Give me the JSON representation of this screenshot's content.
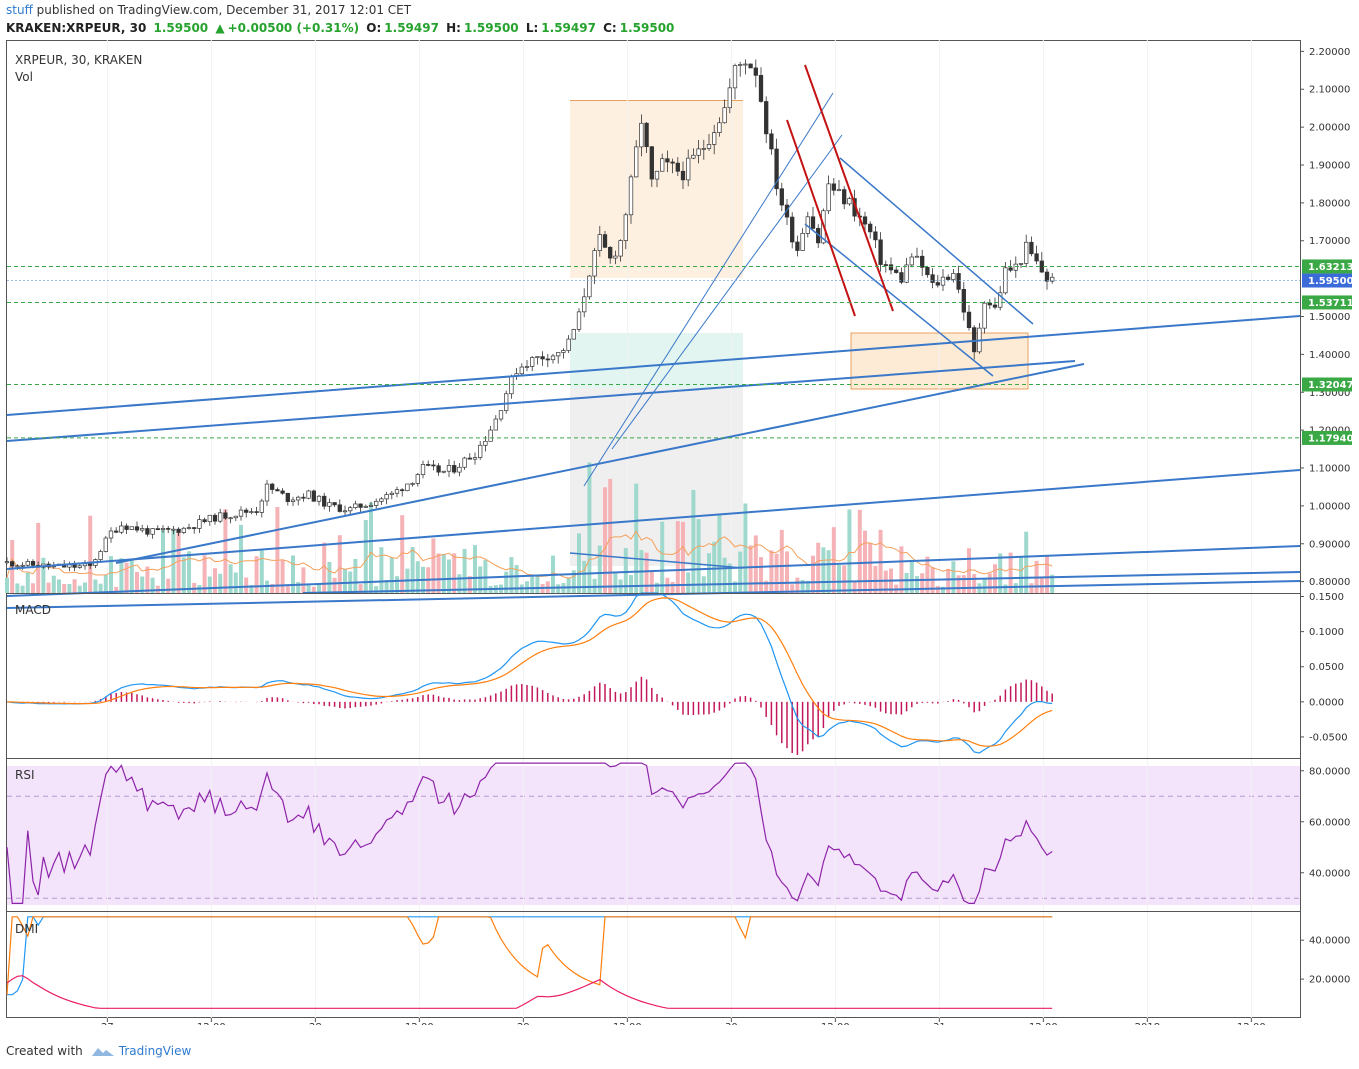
{
  "header": {
    "user": "stuff",
    "published": "published on TradingView.com, December 31, 2017 12:01 CET",
    "symbol": "KRAKEN:XRPEUR, 30",
    "price": "1.59500",
    "change": "+0.00500 (+0.31%)",
    "o_label": "O:",
    "o_value": "1.59497",
    "h_label": "H:",
    "h_value": "1.59500",
    "l_label": "L:",
    "l_value": "1.59497",
    "c_label": "C:",
    "c_value": "1.59500"
  },
  "panes": {
    "main_title": "XRPEUR, 30, KRAKEN",
    "vol_title": "Vol",
    "macd_title": "MACD",
    "rsi_title": "RSI",
    "dmi_title": "DMI"
  },
  "footer": {
    "created_with": "Created with",
    "brand": "TradingView"
  },
  "colors": {
    "up": "#26a69a",
    "down": "#ef5350",
    "trend": "#3a78c9",
    "red_line": "#c41212",
    "level": "#26a32e",
    "macd": "#2196f3",
    "signal": "#ff7f0e",
    "hist": "#c2185b",
    "rsi": "#8e24aa",
    "rsi_band": "#f3e3fb",
    "dmi_plus": "#2196f3",
    "dmi_minus": "#ff7f0e",
    "adx": "#e91e63"
  },
  "chart_data": [
    {
      "type": "candlestick",
      "title": "XRPEUR, 30, KRAKEN",
      "ylim": [
        0.77,
        2.23
      ],
      "y_ticks": [
        "2.20000",
        "2.10000",
        "2.00000",
        "1.90000",
        "1.80000",
        "1.70000",
        "1.50000",
        "1.40000",
        "1.30000",
        "1.20000",
        "1.10000",
        "1.00000",
        "0.90000",
        "0.80000"
      ],
      "x_ticks": [
        "27",
        "12:00",
        "28",
        "12:00",
        "29",
        "12:00",
        "30",
        "12:00",
        "31",
        "12:00",
        "2018",
        "12:00"
      ],
      "path": [
        [
          0,
          0.85
        ],
        [
          8,
          0.84
        ],
        [
          16,
          0.84
        ],
        [
          20,
          0.93
        ],
        [
          22,
          0.95
        ],
        [
          28,
          0.93
        ],
        [
          34,
          0.94
        ],
        [
          40,
          0.97
        ],
        [
          48,
          0.99
        ],
        [
          50,
          1.05
        ],
        [
          54,
          1.02
        ],
        [
          58,
          1.03
        ],
        [
          62,
          1.0
        ],
        [
          66,
          0.99
        ],
        [
          70,
          1.01
        ],
        [
          74,
          1.03
        ],
        [
          78,
          1.07
        ],
        [
          80,
          1.1
        ],
        [
          84,
          1.09
        ],
        [
          86,
          1.1
        ],
        [
          90,
          1.14
        ],
        [
          92,
          1.18
        ],
        [
          94,
          1.23
        ],
        [
          96,
          1.3
        ],
        [
          98,
          1.36
        ],
        [
          100,
          1.38
        ],
        [
          104,
          1.4
        ],
        [
          106,
          1.4
        ],
        [
          108,
          1.43
        ],
        [
          110,
          1.5
        ],
        [
          112,
          1.62
        ],
        [
          114,
          1.7
        ],
        [
          116,
          1.65
        ],
        [
          118,
          1.7
        ],
        [
          120,
          1.85
        ],
        [
          122,
          2.02
        ],
        [
          124,
          1.85
        ],
        [
          126,
          1.9
        ],
        [
          130,
          1.88
        ],
        [
          134,
          1.95
        ],
        [
          138,
          2.05
        ],
        [
          140,
          2.15
        ],
        [
          142,
          2.18
        ],
        [
          144,
          2.15
        ],
        [
          146,
          2.0
        ],
        [
          148,
          1.85
        ],
        [
          150,
          1.75
        ],
        [
          152,
          1.68
        ],
        [
          154,
          1.78
        ],
        [
          156,
          1.7
        ],
        [
          158,
          1.85
        ],
        [
          160,
          1.82
        ],
        [
          162,
          1.8
        ],
        [
          164,
          1.76
        ],
        [
          166,
          1.72
        ],
        [
          168,
          1.65
        ],
        [
          170,
          1.62
        ],
        [
          172,
          1.6
        ],
        [
          174,
          1.66
        ],
        [
          176,
          1.63
        ],
        [
          178,
          1.58
        ],
        [
          180,
          1.6
        ],
        [
          182,
          1.62
        ],
        [
          184,
          1.52
        ],
        [
          186,
          1.4
        ],
        [
          188,
          1.55
        ],
        [
          190,
          1.52
        ],
        [
          192,
          1.62
        ],
        [
          194,
          1.63
        ],
        [
          196,
          1.68
        ],
        [
          198,
          1.64
        ],
        [
          200,
          1.6
        ],
        [
          201,
          1.595
        ]
      ],
      "h_levels": [
        {
          "label": "1.63213",
          "value": 1.63213
        },
        {
          "label": "1.53711",
          "value": 1.53711
        },
        {
          "label": "1.32047",
          "value": 1.32047
        },
        {
          "label": "1.17940",
          "value": 1.1794
        }
      ],
      "current_price": {
        "label": "1.59500",
        "value": 1.595
      }
    },
    {
      "type": "line",
      "title": "MACD",
      "ylim": [
        -0.08,
        0.155
      ],
      "y_ticks": [
        "0.1500",
        "0.1000",
        "0.0500",
        "0.0000",
        "-0.0500"
      ]
    },
    {
      "type": "line",
      "title": "RSI",
      "ylim": [
        25,
        85
      ],
      "band": [
        30,
        70
      ],
      "y_ticks": [
        "80.0000",
        "60.0000",
        "40.0000"
      ]
    },
    {
      "type": "line",
      "title": "DMI",
      "ylim": [
        0,
        55
      ],
      "y_ticks": [
        "40.0000",
        "20.0000"
      ]
    }
  ]
}
